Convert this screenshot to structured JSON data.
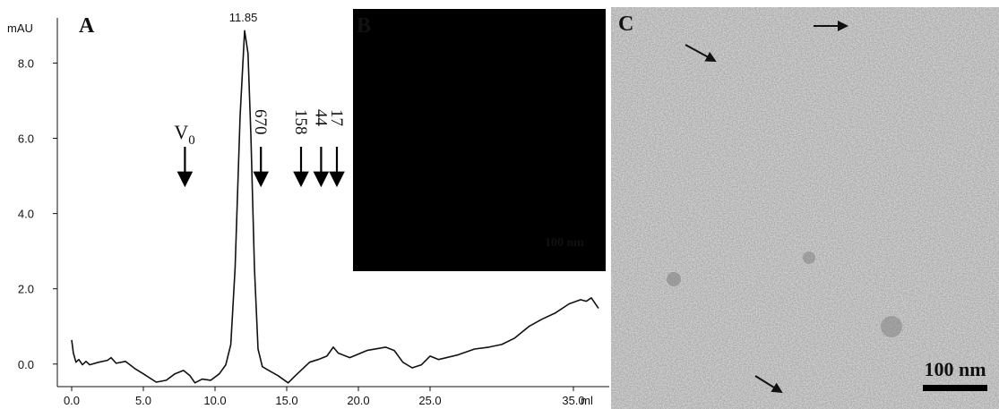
{
  "chart_data": {
    "type": "line",
    "panel_label": "A",
    "y_label": "mAU",
    "x_label": "ml",
    "xlim": [
      -1,
      37.5
    ],
    "ylim": [
      -0.6,
      9.2
    ],
    "xticks": [
      {
        "value": 0,
        "label": "0.0"
      },
      {
        "value": 5,
        "label": "5.0"
      },
      {
        "value": 10,
        "label": "10.0"
      },
      {
        "value": 15,
        "label": "15.0"
      },
      {
        "value": 20,
        "label": "20.0"
      },
      {
        "value": 25,
        "label": "25.0"
      },
      {
        "value": 35,
        "label": "35.0"
      }
    ],
    "yticks": [
      {
        "value": 0,
        "label": "0.0"
      },
      {
        "value": 2,
        "label": "2.0"
      },
      {
        "value": 4,
        "label": "4.0"
      },
      {
        "value": 6,
        "label": "6.0"
      },
      {
        "value": 8,
        "label": "8.0"
      }
    ],
    "grid": false,
    "series": [
      {
        "color": "#111111",
        "x": [
          0.0,
          0.12,
          0.3,
          0.5,
          0.75,
          1.0,
          1.25,
          1.9,
          2.5,
          2.75,
          3.1,
          3.75,
          4.4,
          5.0,
          5.9,
          6.6,
          7.2,
          7.8,
          8.25,
          8.6,
          9.1,
          9.7,
          10.3,
          10.75,
          11.1,
          11.4,
          11.75,
          12.06,
          12.3,
          12.5,
          12.75,
          13.0,
          13.3,
          13.75,
          14.4,
          15.1,
          15.6,
          16.6,
          17.2,
          17.8,
          18.25,
          18.6,
          19.4,
          20.6,
          21.9,
          22.5,
          23.1,
          23.75,
          24.4,
          25.0,
          25.6,
          26.9,
          28.1,
          29.1,
          30.0,
          30.9,
          31.9,
          32.8,
          33.75,
          34.7,
          35.5,
          35.9,
          36.25,
          36.75
        ],
        "values": [
          0.64,
          0.29,
          0.05,
          0.12,
          -0.02,
          0.07,
          -0.02,
          0.05,
          0.1,
          0.17,
          0.02,
          0.07,
          -0.12,
          -0.26,
          -0.48,
          -0.43,
          -0.26,
          -0.17,
          -0.31,
          -0.5,
          -0.4,
          -0.43,
          -0.26,
          -0.02,
          0.52,
          2.55,
          6.6,
          8.86,
          8.26,
          6.1,
          2.55,
          0.4,
          -0.07,
          -0.17,
          -0.31,
          -0.5,
          -0.31,
          0.05,
          0.12,
          0.21,
          0.45,
          0.29,
          0.17,
          0.36,
          0.45,
          0.36,
          0.05,
          -0.1,
          -0.02,
          0.21,
          0.12,
          0.24,
          0.4,
          0.45,
          0.52,
          0.69,
          1.0,
          1.19,
          1.36,
          1.6,
          1.71,
          1.67,
          1.76,
          1.48
        ]
      }
    ],
    "peak_label": {
      "x": 11.85,
      "text": "11.85"
    },
    "markers": [
      {
        "x": 7.9,
        "label": "V",
        "subscript": "0"
      },
      {
        "x": 13.2,
        "label": "670"
      },
      {
        "x": 16.0,
        "label": "158"
      },
      {
        "x": 17.4,
        "label": "44"
      },
      {
        "x": 18.5,
        "label": "17"
      }
    ]
  },
  "panel_b": {
    "label": "B",
    "scale_bar": "100 nm"
  },
  "panel_c": {
    "label": "C",
    "scale_bar": "100 nm"
  }
}
